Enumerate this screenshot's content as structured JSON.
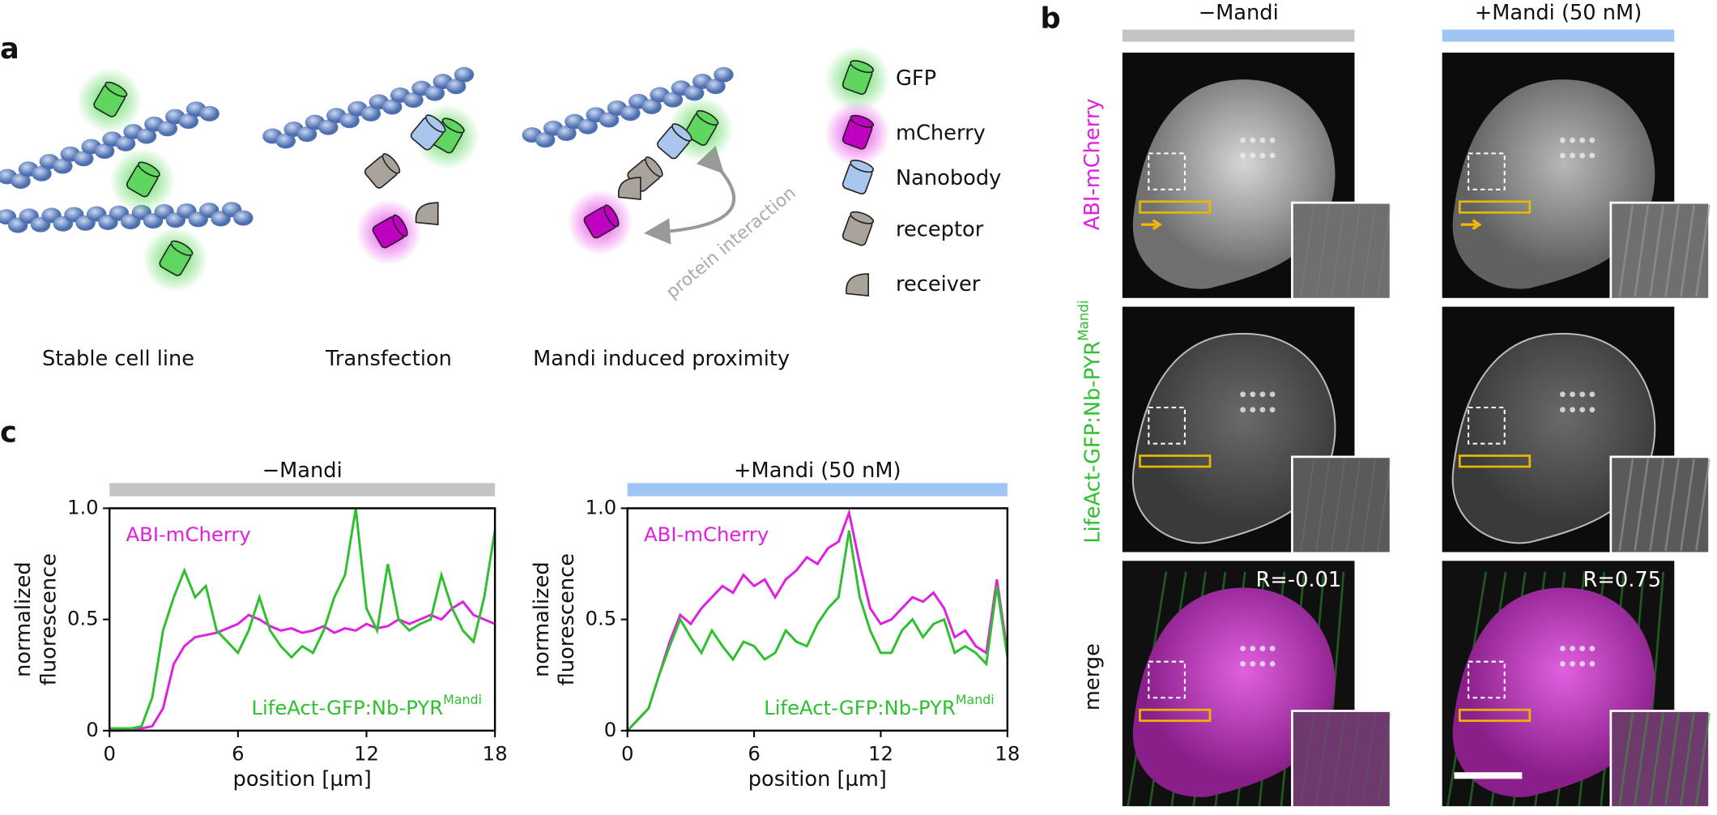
{
  "panel_labels": [
    "a",
    "b",
    "c"
  ],
  "diagram": {
    "legend": [
      "GFP",
      "mCherry",
      "Nanobody",
      "receptor",
      "receiver"
    ],
    "captions": [
      "Stable cell line",
      "Transfection",
      "Mandi induced proximity"
    ],
    "annotation": "protein interaction"
  },
  "microscopy": {
    "columns": [
      "−Mandi",
      "+Mandi (50 nM)"
    ],
    "rows": [
      {
        "label": "ABI-mCherry"
      },
      {
        "label": "LifeAct-GFP:Nb-PYR",
        "superscript": "Mandi"
      },
      {
        "label": "merge"
      }
    ],
    "correlations": [
      "R=-0.01",
      "R=0.75"
    ]
  },
  "chart_data": [
    {
      "type": "line",
      "title": "−Mandi",
      "title_bar_color": "#c4c4c4",
      "xlabel": "position [µm]",
      "ylabel": [
        "normalized",
        "fluorescence"
      ],
      "x": [
        0,
        0.5,
        1,
        1.5,
        2,
        2.5,
        3,
        3.5,
        4,
        4.5,
        5,
        5.5,
        6,
        6.5,
        7,
        7.5,
        8,
        8.5,
        9,
        9.5,
        10,
        10.5,
        11,
        11.5,
        12,
        12.5,
        13,
        13.5,
        14,
        14.5,
        15,
        15.5,
        16,
        16.5,
        17,
        17.5,
        18
      ],
      "xlim": [
        0,
        18
      ],
      "ylim": [
        0,
        1
      ],
      "xticks": [
        0,
        6,
        12,
        18
      ],
      "yticks": [
        0,
        0.5,
        {
          "value": 1,
          "label": "1.0"
        }
      ],
      "series": [
        {
          "name": "ABI-mCherry",
          "color": "#e020e0",
          "values": [
            0,
            0,
            0.01,
            0.01,
            0.02,
            0.1,
            0.3,
            0.38,
            0.42,
            0.43,
            0.44,
            0.46,
            0.48,
            0.52,
            0.5,
            0.47,
            0.45,
            0.46,
            0.44,
            0.45,
            0.47,
            0.44,
            0.46,
            0.45,
            0.48,
            0.46,
            0.47,
            0.5,
            0.48,
            0.5,
            0.52,
            0.5,
            0.55,
            0.58,
            0.52,
            0.5,
            0.48
          ]
        },
        {
          "name": "LifeAct-GFP:Nb-PYR",
          "name_superscript": "Mandi",
          "color": "#2ec02e",
          "values": [
            0.01,
            0.01,
            0.01,
            0.02,
            0.15,
            0.45,
            0.6,
            0.72,
            0.6,
            0.65,
            0.45,
            0.4,
            0.35,
            0.45,
            0.6,
            0.45,
            0.38,
            0.33,
            0.38,
            0.35,
            0.45,
            0.6,
            0.7,
            1.0,
            0.55,
            0.45,
            0.75,
            0.5,
            0.45,
            0.48,
            0.5,
            0.7,
            0.55,
            0.45,
            0.4,
            0.6,
            0.9
          ]
        }
      ]
    },
    {
      "type": "line",
      "title": "+Mandi (50 nM)",
      "title_bar_color": "#9ec5f4",
      "xlabel": "position [µm]",
      "ylabel": [
        "normalized",
        "fluorescence"
      ],
      "x": [
        0,
        0.5,
        1,
        1.5,
        2,
        2.5,
        3,
        3.5,
        4,
        4.5,
        5,
        5.5,
        6,
        6.5,
        7,
        7.5,
        8,
        8.5,
        9,
        9.5,
        10,
        10.5,
        11,
        11.5,
        12,
        12.5,
        13,
        13.5,
        14,
        14.5,
        15,
        15.5,
        16,
        16.5,
        17,
        17.5,
        18
      ],
      "xlim": [
        0,
        18
      ],
      "ylim": [
        0,
        1
      ],
      "xticks": [
        0,
        6,
        12,
        18
      ],
      "yticks": [
        0,
        0.5,
        {
          "value": 1,
          "label": "1.0"
        }
      ],
      "series": [
        {
          "name": "ABI-mCherry",
          "color": "#e020e0",
          "values": [
            0,
            0.05,
            0.1,
            0.25,
            0.4,
            0.52,
            0.48,
            0.55,
            0.6,
            0.65,
            0.62,
            0.7,
            0.65,
            0.68,
            0.6,
            0.68,
            0.72,
            0.78,
            0.75,
            0.82,
            0.85,
            0.98,
            0.75,
            0.55,
            0.48,
            0.5,
            0.55,
            0.6,
            0.58,
            0.62,
            0.55,
            0.42,
            0.45,
            0.38,
            0.35,
            0.68,
            0.35
          ]
        },
        {
          "name": "LifeAct-GFP:Nb-PYR",
          "name_superscript": "Mandi",
          "color": "#2ec02e",
          "values": [
            0,
            0.05,
            0.1,
            0.25,
            0.38,
            0.5,
            0.42,
            0.35,
            0.45,
            0.38,
            0.32,
            0.4,
            0.38,
            0.32,
            0.35,
            0.45,
            0.4,
            0.38,
            0.48,
            0.55,
            0.6,
            0.9,
            0.6,
            0.45,
            0.35,
            0.35,
            0.45,
            0.5,
            0.42,
            0.48,
            0.5,
            0.35,
            0.38,
            0.35,
            0.3,
            0.65,
            0.33
          ]
        }
      ]
    }
  ]
}
